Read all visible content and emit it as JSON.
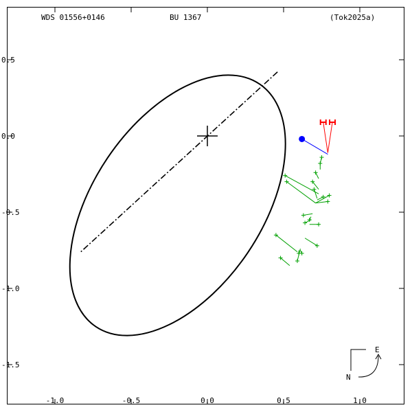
{
  "header": {
    "left": "WDS 01556+0146",
    "center": "BU 1367",
    "right": "(Tok2025a)"
  },
  "compass": {
    "east": "E",
    "north": "N"
  },
  "colors": {
    "orbit": "#000000",
    "observation": "#00a000",
    "residual": "#00a000",
    "predicted": "#0000ff",
    "speckle": "#ff0000"
  },
  "chart_data": {
    "type": "scatter",
    "x_ticks": [
      -1.0,
      -0.5,
      0.0,
      0.5,
      1.0
    ],
    "x_tick_labels": [
      "-1.0",
      "-0.5",
      "0.0",
      "0.5",
      "1.0"
    ],
    "y_ticks": [
      0.5,
      0.0,
      -0.5,
      -1.0,
      -1.5
    ],
    "y_tick_labels": [
      "0.5",
      "0.0",
      "-0.5",
      "-1.0",
      "-1.5"
    ],
    "xlim": [
      -1.3,
      1.35
    ],
    "ylim": [
      -1.8,
      0.85
    ],
    "primary": {
      "x": 0.0,
      "y": 0.0
    },
    "orbit": {
      "center": {
        "x": -0.195,
        "y": -0.455
      },
      "semi_major": 0.96,
      "semi_minor": 0.555,
      "angle_deg": 56
    },
    "line_of_nodes": {
      "x1": 0.46,
      "y1": 0.42,
      "x2": -0.83,
      "y2": -0.76
    },
    "predicted_position": {
      "x": 0.62,
      "y": -0.02,
      "ox": 0.79,
      "oy": -0.12
    },
    "speckle_observations": [
      {
        "x": 0.76,
        "y": 0.09,
        "ox": 0.79,
        "oy": -0.11
      },
      {
        "x": 0.82,
        "y": 0.09,
        "ox": 0.79,
        "oy": -0.11
      }
    ],
    "observations": [
      {
        "x": 0.75,
        "y": -0.14,
        "ox": 0.74,
        "oy": -0.18
      },
      {
        "x": 0.74,
        "y": -0.18,
        "ox": 0.74,
        "oy": -0.22
      },
      {
        "x": 0.71,
        "y": -0.24,
        "ox": 0.73,
        "oy": -0.28
      },
      {
        "x": 0.69,
        "y": -0.3,
        "ox": 0.73,
        "oy": -0.35
      },
      {
        "x": 0.51,
        "y": -0.26,
        "ox": 0.73,
        "oy": -0.38
      },
      {
        "x": 0.52,
        "y": -0.3,
        "ox": 0.71,
        "oy": -0.44
      },
      {
        "x": 0.7,
        "y": -0.35,
        "ox": 0.72,
        "oy": -0.41
      },
      {
        "x": 0.76,
        "y": -0.4,
        "ox": 0.72,
        "oy": -0.42
      },
      {
        "x": 0.8,
        "y": -0.39,
        "ox": 0.71,
        "oy": -0.44
      },
      {
        "x": 0.79,
        "y": -0.43,
        "ox": 0.71,
        "oy": -0.44
      },
      {
        "x": 0.63,
        "y": -0.52,
        "ox": 0.69,
        "oy": -0.51
      },
      {
        "x": 0.64,
        "y": -0.57,
        "ox": 0.68,
        "oy": -0.55
      },
      {
        "x": 0.73,
        "y": -0.58,
        "ox": 0.67,
        "oy": -0.58
      },
      {
        "x": 0.67,
        "y": -0.55,
        "ox": 0.68,
        "oy": -0.53
      },
      {
        "x": 0.45,
        "y": -0.65,
        "ox": 0.59,
        "oy": -0.76
      },
      {
        "x": 0.72,
        "y": -0.72,
        "ox": 0.64,
        "oy": -0.67
      },
      {
        "x": 0.6,
        "y": -0.77,
        "ox": 0.6,
        "oy": -0.75
      },
      {
        "x": 0.59,
        "y": -0.82,
        "ox": 0.61,
        "oy": -0.74
      },
      {
        "x": 0.48,
        "y": -0.8,
        "ox": 0.54,
        "oy": -0.85
      },
      {
        "x": 0.62,
        "y": -0.77,
        "ox": 0.61,
        "oy": -0.75
      }
    ]
  }
}
